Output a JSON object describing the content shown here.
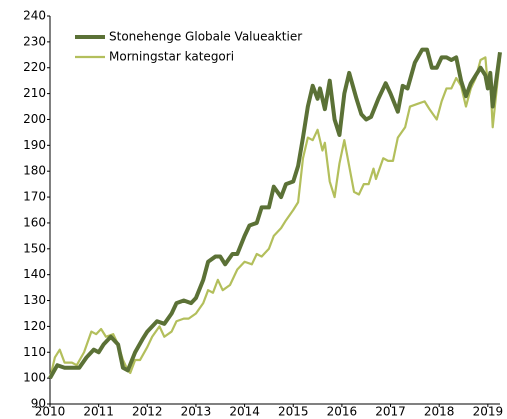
{
  "chart_data": {
    "type": "line",
    "xlim": [
      2010,
      2019.25
    ],
    "xticks": [
      2010,
      2011,
      2012,
      2013,
      2014,
      2015,
      2016,
      2017,
      2018,
      2019
    ],
    "ylim": [
      90,
      240
    ],
    "yticks": [
      90,
      100,
      110,
      120,
      130,
      140,
      150,
      160,
      170,
      180,
      190,
      200,
      210,
      220,
      230,
      240
    ],
    "grid": false,
    "legend": "top-left",
    "series": [
      {
        "name": "Stonehenge Globale Valueaktier",
        "color": "#5b7136",
        "x": [
          2010.0,
          2010.15,
          2010.3,
          2010.5,
          2010.6,
          2010.75,
          2010.9,
          2011.0,
          2011.1,
          2011.25,
          2011.4,
          2011.5,
          2011.6,
          2011.75,
          2011.9,
          2012.0,
          2012.2,
          2012.35,
          2012.5,
          2012.6,
          2012.75,
          2012.9,
          2013.0,
          2013.15,
          2013.25,
          2013.4,
          2013.5,
          2013.6,
          2013.75,
          2013.85,
          2014.0,
          2014.1,
          2014.25,
          2014.35,
          2014.5,
          2014.6,
          2014.75,
          2014.85,
          2015.0,
          2015.1,
          2015.2,
          2015.3,
          2015.4,
          2015.5,
          2015.55,
          2015.65,
          2015.75,
          2015.85,
          2015.95,
          2016.05,
          2016.15,
          2016.3,
          2016.4,
          2016.5,
          2016.6,
          2016.75,
          2016.9,
          2017.0,
          2017.15,
          2017.25,
          2017.35,
          2017.5,
          2017.65,
          2017.75,
          2017.85,
          2017.95,
          2018.05,
          2018.15,
          2018.25,
          2018.35,
          2018.45,
          2018.55,
          2018.65,
          2018.75,
          2018.85,
          2018.95,
          2019.0,
          2019.05,
          2019.1,
          2019.25
        ],
        "values": [
          100,
          105,
          104,
          104,
          104,
          108,
          111,
          110,
          113,
          116,
          113,
          104,
          103,
          110,
          115,
          118,
          122,
          121,
          125,
          129,
          130,
          129,
          131,
          138,
          145,
          147,
          147,
          144,
          148,
          148,
          155,
          159,
          160,
          166,
          166,
          174,
          170,
          175,
          176,
          182,
          193,
          205,
          213,
          208,
          212,
          204,
          215,
          200,
          194,
          210,
          218,
          208,
          202,
          200,
          201,
          208,
          214,
          210,
          203,
          213,
          212,
          222,
          227,
          227,
          220,
          220,
          224,
          224,
          223,
          224,
          215,
          209,
          214,
          217,
          220,
          217,
          212,
          218,
          205,
          226
        ]
      },
      {
        "name": "Morningstar kategori",
        "color": "#b3bf5c",
        "x": [
          2010.0,
          2010.1,
          2010.2,
          2010.3,
          2010.45,
          2010.55,
          2010.7,
          2010.85,
          2010.95,
          2011.05,
          2011.15,
          2011.3,
          2011.4,
          2011.5,
          2011.6,
          2011.65,
          2011.75,
          2011.85,
          2012.0,
          2012.1,
          2012.25,
          2012.35,
          2012.5,
          2012.6,
          2012.75,
          2012.85,
          2013.0,
          2013.15,
          2013.25,
          2013.35,
          2013.45,
          2013.55,
          2013.7,
          2013.85,
          2014.0,
          2014.15,
          2014.25,
          2014.35,
          2014.5,
          2014.6,
          2014.75,
          2014.85,
          2015.0,
          2015.1,
          2015.2,
          2015.3,
          2015.4,
          2015.5,
          2015.6,
          2015.65,
          2015.75,
          2015.85,
          2015.95,
          2016.05,
          2016.15,
          2016.25,
          2016.35,
          2016.45,
          2016.55,
          2016.65,
          2016.7,
          2016.85,
          2016.95,
          2017.05,
          2017.15,
          2017.3,
          2017.4,
          2017.55,
          2017.7,
          2017.8,
          2017.95,
          2018.05,
          2018.15,
          2018.25,
          2018.35,
          2018.45,
          2018.55,
          2018.65,
          2018.75,
          2018.85,
          2018.95,
          2019.0,
          2019.05,
          2019.1,
          2019.2,
          2019.25
        ],
        "values": [
          100,
          108,
          111,
          106,
          106,
          105,
          110,
          118,
          117,
          119,
          116,
          117,
          113,
          107,
          103,
          102,
          107,
          107,
          112,
          116,
          120,
          116,
          118,
          122,
          123,
          123,
          125,
          129,
          134,
          133,
          138,
          134,
          136,
          142,
          145,
          144,
          148,
          147,
          150,
          155,
          158,
          161,
          165,
          168,
          185,
          193,
          192,
          196,
          188,
          191,
          176,
          170,
          183,
          192,
          182,
          172,
          171,
          175,
          175,
          181,
          177,
          185,
          184,
          184,
          193,
          197,
          205,
          206,
          207,
          204,
          200,
          207,
          212,
          212,
          216,
          213,
          205,
          212,
          216,
          223,
          224,
          213,
          215,
          197,
          215,
          223
        ]
      }
    ]
  }
}
